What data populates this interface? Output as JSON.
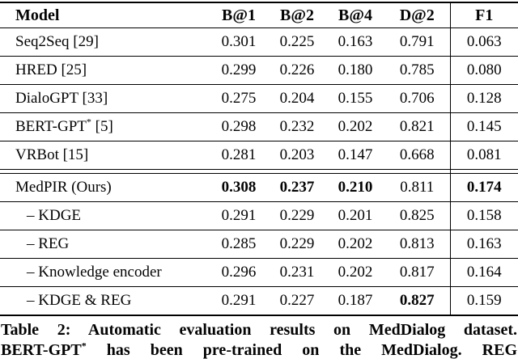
{
  "page": {
    "background": "#ffffff",
    "text_color": "#040404",
    "rule_color": "#000000"
  },
  "table": {
    "columns": [
      {
        "key": "model",
        "label": "Model"
      },
      {
        "key": "b1",
        "label": "B@1"
      },
      {
        "key": "b2",
        "label": "B@2"
      },
      {
        "key": "b4",
        "label": "B@4"
      },
      {
        "key": "d2",
        "label": "D@2"
      },
      {
        "key": "f1",
        "label": "F1"
      }
    ],
    "rows": [
      {
        "model": "Seq2Seq [29]",
        "indent": false,
        "values": [
          "0.301",
          "0.225",
          "0.163",
          "0.791",
          "0.063"
        ],
        "bold": [
          false,
          false,
          false,
          false,
          false
        ],
        "separator_after": false
      },
      {
        "model": "HRED [25]",
        "indent": false,
        "values": [
          "0.299",
          "0.226",
          "0.180",
          "0.785",
          "0.080"
        ],
        "bold": [
          false,
          false,
          false,
          false,
          false
        ],
        "separator_after": false
      },
      {
        "model": "DialoGPT [33]",
        "indent": false,
        "values": [
          "0.275",
          "0.204",
          "0.155",
          "0.706",
          "0.128"
        ],
        "bold": [
          false,
          false,
          false,
          false,
          false
        ],
        "separator_after": false
      },
      {
        "model": "BERT-GPT* [5]",
        "indent": false,
        "values": [
          "0.298",
          "0.232",
          "0.202",
          "0.821",
          "0.145"
        ],
        "bold": [
          false,
          false,
          false,
          false,
          false
        ],
        "separator_after": false
      },
      {
        "model": "VRBot [15]",
        "indent": false,
        "values": [
          "0.281",
          "0.203",
          "0.147",
          "0.668",
          "0.081"
        ],
        "bold": [
          false,
          false,
          false,
          false,
          false
        ],
        "separator_after": true
      },
      {
        "model": "MedPIR (Ours)",
        "indent": false,
        "values": [
          "0.308",
          "0.237",
          "0.210",
          "0.811",
          "0.174"
        ],
        "bold": [
          true,
          true,
          true,
          false,
          true
        ],
        "separator_after": false
      },
      {
        "model": "– KDGE",
        "indent": true,
        "values": [
          "0.291",
          "0.229",
          "0.201",
          "0.825",
          "0.158"
        ],
        "bold": [
          false,
          false,
          false,
          false,
          false
        ],
        "separator_after": false
      },
      {
        "model": "– REG",
        "indent": true,
        "values": [
          "0.285",
          "0.229",
          "0.202",
          "0.813",
          "0.163"
        ],
        "bold": [
          false,
          false,
          false,
          false,
          false
        ],
        "separator_after": false
      },
      {
        "model": "– Knowledge encoder",
        "indent": true,
        "values": [
          "0.296",
          "0.231",
          "0.202",
          "0.817",
          "0.164"
        ],
        "bold": [
          false,
          false,
          false,
          false,
          false
        ],
        "separator_after": false
      },
      {
        "model": "– KDGE & REG",
        "indent": true,
        "values": [
          "0.291",
          "0.227",
          "0.187",
          "0.827",
          "0.159"
        ],
        "bold": [
          false,
          false,
          false,
          true,
          false
        ],
        "separator_after": false
      }
    ]
  },
  "caption": {
    "line1": "Table 2: Automatic evaluation results on MedDialog dataset.",
    "line2": "BERT-GPT* has been pre-trained on the MedDialog. REG"
  }
}
